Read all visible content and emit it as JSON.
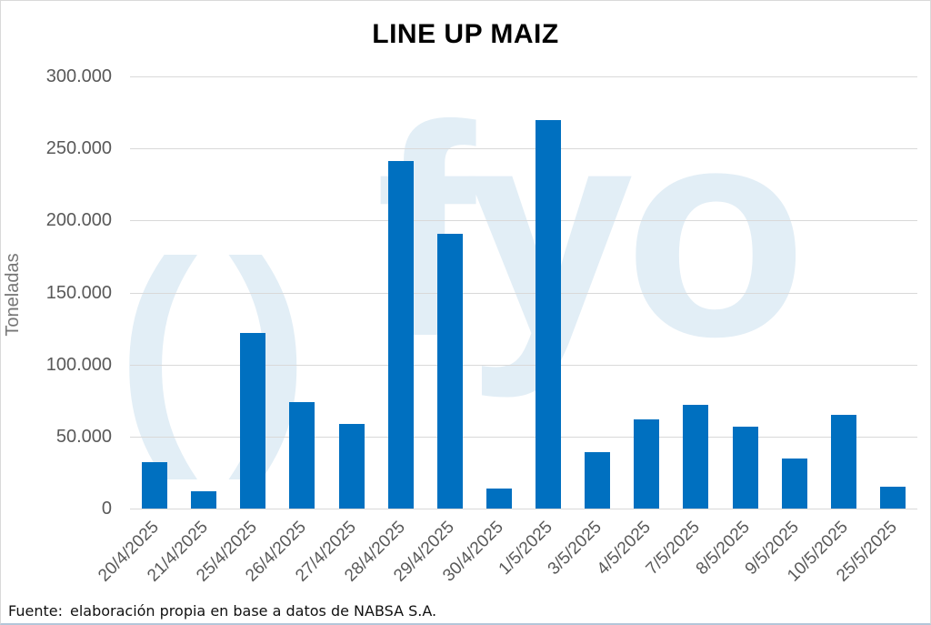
{
  "title": "LINE UP MAIZ",
  "watermark": {
    "parens": "()",
    "text": "fyo",
    "color": "#e2eef6"
  },
  "chart_data": {
    "type": "bar",
    "title": "LINE UP MAIZ",
    "xlabel": "",
    "ylabel": "Toneladas",
    "categories": [
      "20/4/2025",
      "21/4/2025",
      "25/4/2025",
      "26/4/2025",
      "27/4/2025",
      "28/4/2025",
      "29/4/2025",
      "30/4/2025",
      "1/5/2025",
      "3/5/2025",
      "4/5/2025",
      "7/5/2025",
      "8/5/2025",
      "9/5/2025",
      "10/5/2025",
      "25/5/2025"
    ],
    "values": [
      32000,
      12000,
      122000,
      74000,
      59000,
      241000,
      191000,
      14000,
      270000,
      39000,
      62000,
      72000,
      57000,
      35000,
      65000,
      15000
    ],
    "ylim": [
      0,
      300000
    ],
    "ytick_step": 50000,
    "ytick_labels": [
      "0",
      "50.000",
      "100.000",
      "150.000",
      "200.000",
      "250.000",
      "300.000"
    ],
    "grid": true,
    "legend_position": "none",
    "colors": {
      "bar": "#0070C0",
      "grid": "#d9d9d9",
      "axis_text": "#595959",
      "title_text": "#000000",
      "watermark": "#e2eef6"
    }
  },
  "footer": {
    "source_label": "Fuente:",
    "source_text": "elaboración propia en base a datos de NABSA S.A."
  }
}
